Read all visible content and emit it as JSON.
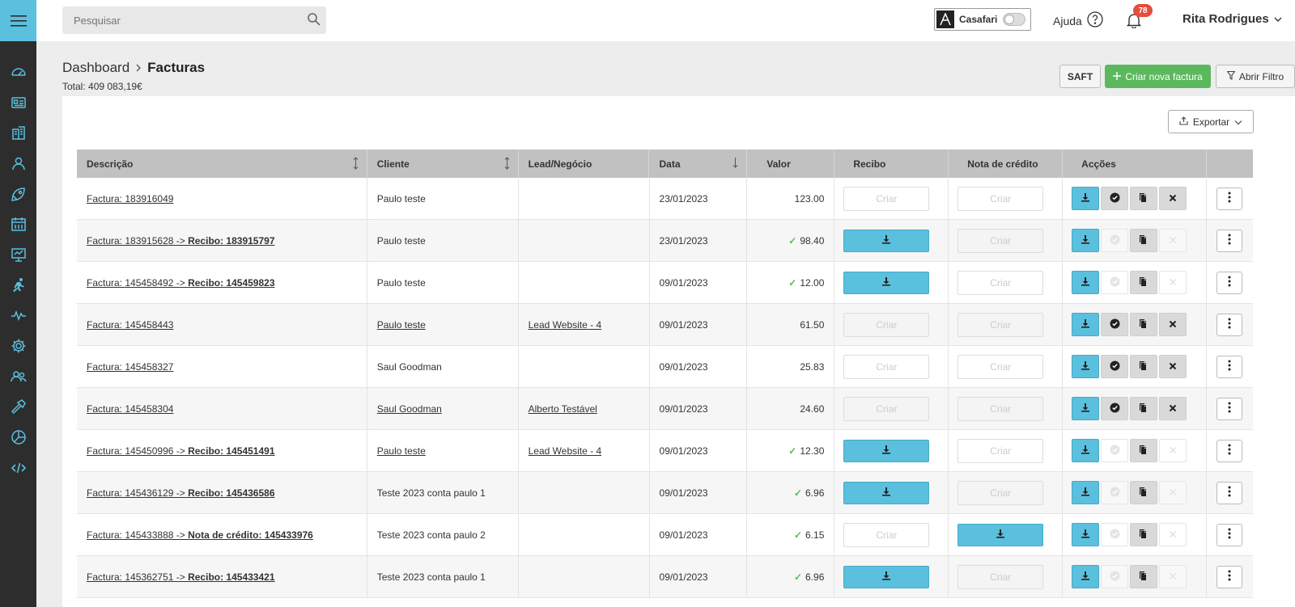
{
  "search": {
    "placeholder": "Pesquisar"
  },
  "topbar": {
    "casafari_label": "Casafari",
    "help_label": "Ajuda",
    "notifications_count": "78",
    "user_name": "Rita Rodrigues"
  },
  "breadcrumb": {
    "parent": "Dashboard",
    "current": "Facturas"
  },
  "total_label": "Total: 409 083,19€",
  "buttons": {
    "saft": "SAFT",
    "new_invoice": "Criar nova factura",
    "open_filter": "Abrir Filtro",
    "export": "Exportar"
  },
  "table": {
    "columns": [
      "Descrição",
      "Cliente",
      "Lead/Negócio",
      "Data",
      "Valor",
      "Recibo",
      "Nota de crédito",
      "Acções"
    ],
    "create_label": "Criar",
    "rows": [
      {
        "invoice": "Factura: 183916049",
        "doc": "",
        "client": "Paulo teste",
        "client_link": false,
        "lead": "",
        "date": "23/01/2023",
        "value": "123.00",
        "paid": false,
        "receipt": "create",
        "credit": "create",
        "state": "open"
      },
      {
        "invoice": "Factura: 183915628 -> ",
        "doc": "Recibo: 183915797",
        "client": "Paulo teste",
        "client_link": false,
        "lead": "",
        "date": "23/01/2023",
        "value": "98.40",
        "paid": true,
        "receipt": "download",
        "credit": "create",
        "state": "paid"
      },
      {
        "invoice": "Factura: 145458492 -> ",
        "doc": "Recibo: 145459823",
        "client": "Paulo teste",
        "client_link": false,
        "lead": "",
        "date": "09/01/2023",
        "value": "12.00",
        "paid": true,
        "receipt": "download",
        "credit": "create",
        "state": "paid"
      },
      {
        "invoice": "Factura: 145458443",
        "doc": "",
        "client": "Paulo teste",
        "client_link": true,
        "lead": "Lead Website - 4",
        "date": "09/01/2023",
        "value": "61.50",
        "paid": false,
        "receipt": "create",
        "credit": "create",
        "state": "open"
      },
      {
        "invoice": "Factura: 145458327",
        "doc": "",
        "client": "Saul Goodman",
        "client_link": false,
        "lead": "",
        "date": "09/01/2023",
        "value": "25.83",
        "paid": false,
        "receipt": "create",
        "credit": "create",
        "state": "open"
      },
      {
        "invoice": "Factura: 145458304",
        "doc": "",
        "client": "Saul Goodman",
        "client_link": true,
        "lead": "Alberto Testável",
        "date": "09/01/2023",
        "value": "24.60",
        "paid": false,
        "receipt": "create",
        "credit": "create",
        "state": "open"
      },
      {
        "invoice": "Factura: 145450996 -> ",
        "doc": "Recibo: 145451491",
        "client": "Paulo teste",
        "client_link": true,
        "lead": "Lead Website - 4",
        "date": "09/01/2023",
        "value": "12.30",
        "paid": true,
        "receipt": "download",
        "credit": "create",
        "state": "paid"
      },
      {
        "invoice": "Factura: 145436129 -> ",
        "doc": "Recibo: 145436586",
        "client": "Teste 2023 conta paulo 1",
        "client_link": false,
        "lead": "",
        "date": "09/01/2023",
        "value": "6.96",
        "paid": true,
        "receipt": "download",
        "credit": "create",
        "state": "paid"
      },
      {
        "invoice": "Factura: 145433888 -> ",
        "doc": "Nota de crédito: 145433976",
        "client": "Teste 2023 conta paulo 2",
        "client_link": false,
        "lead": "",
        "date": "09/01/2023",
        "value": "6.15",
        "paid": true,
        "receipt": "create",
        "credit": "download",
        "state": "paid"
      },
      {
        "invoice": "Factura: 145362751 -> ",
        "doc": "Recibo: 145433421",
        "client": "Teste 2023 conta paulo 1",
        "client_link": false,
        "lead": "",
        "date": "09/01/2023",
        "value": "6.96",
        "paid": true,
        "receipt": "download",
        "credit": "create",
        "state": "paid"
      }
    ]
  },
  "colors": {
    "accent": "#5bc0de",
    "success": "#5cb85c",
    "danger": "#e74c3c",
    "sidebar": "#2d2d2d"
  },
  "sidebar_icons": [
    "menu-icon",
    "dashboard-icon",
    "contact-card-icon",
    "buildings-icon",
    "user-icon",
    "rocket-icon",
    "calendar-icon",
    "presentation-icon",
    "running-icon",
    "activity-icon",
    "gear-icon",
    "users-icon",
    "hammer-icon",
    "pie-chart-icon",
    "code-icon"
  ]
}
